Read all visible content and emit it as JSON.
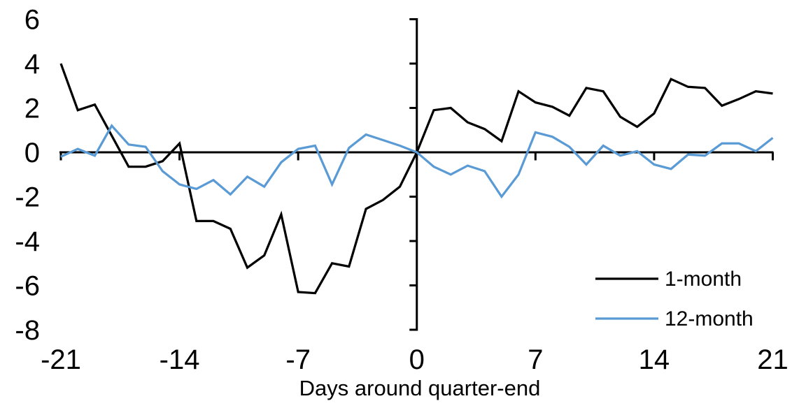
{
  "background": "#ffffff",
  "chart_data": {
    "type": "line",
    "title": "",
    "xlabel": "Days around quarter-end",
    "ylabel": "",
    "xlim": [
      -21,
      21
    ],
    "ylim": [
      -8,
      6
    ],
    "x_ticks": [
      -21,
      -14,
      -7,
      0,
      7,
      14,
      21
    ],
    "y_ticks": [
      6,
      4,
      2,
      0,
      -2,
      -4,
      -6,
      -8
    ],
    "grid": false,
    "axis_color": "#000000",
    "legend_position": "inside-bottom-right",
    "x": [
      -21,
      -20,
      -19,
      -18,
      -17,
      -16,
      -15,
      -14,
      -13,
      -12,
      -11,
      -10,
      -9,
      -8,
      -7,
      -6,
      -5,
      -4,
      -3,
      -2,
      -1,
      0,
      1,
      2,
      3,
      4,
      5,
      6,
      7,
      8,
      9,
      10,
      11,
      12,
      13,
      14,
      15,
      16,
      17,
      18,
      19,
      20,
      21
    ],
    "series": [
      {
        "name": "1-month",
        "color": "#000000",
        "values": [
          4.0,
          1.9,
          2.15,
          0.75,
          -0.65,
          -0.65,
          -0.4,
          0.4,
          -3.1,
          -3.1,
          -3.45,
          -5.2,
          -4.65,
          -2.8,
          -6.3,
          -6.35,
          -5.0,
          -5.15,
          -2.55,
          -2.15,
          -1.55,
          0.0,
          1.9,
          2.0,
          1.35,
          1.05,
          0.5,
          2.75,
          2.25,
          2.05,
          1.65,
          2.9,
          2.75,
          1.6,
          1.15,
          1.75,
          3.3,
          2.95,
          2.9,
          2.1,
          2.4,
          2.75,
          2.65
        ]
      },
      {
        "name": "12-month",
        "color": "#5B9BD5",
        "values": [
          -0.2,
          0.15,
          -0.15,
          1.2,
          0.35,
          0.25,
          -0.85,
          -1.45,
          -1.65,
          -1.25,
          -1.9,
          -1.1,
          -1.55,
          -0.45,
          0.15,
          0.3,
          -1.45,
          0.2,
          0.8,
          0.55,
          0.3,
          0.0,
          -0.65,
          -1.0,
          -0.6,
          -0.85,
          -2.0,
          -1.0,
          0.9,
          0.7,
          0.25,
          -0.55,
          0.3,
          -0.15,
          0.05,
          -0.55,
          -0.75,
          -0.1,
          -0.15,
          0.4,
          0.4,
          0.05,
          0.65
        ]
      }
    ]
  }
}
